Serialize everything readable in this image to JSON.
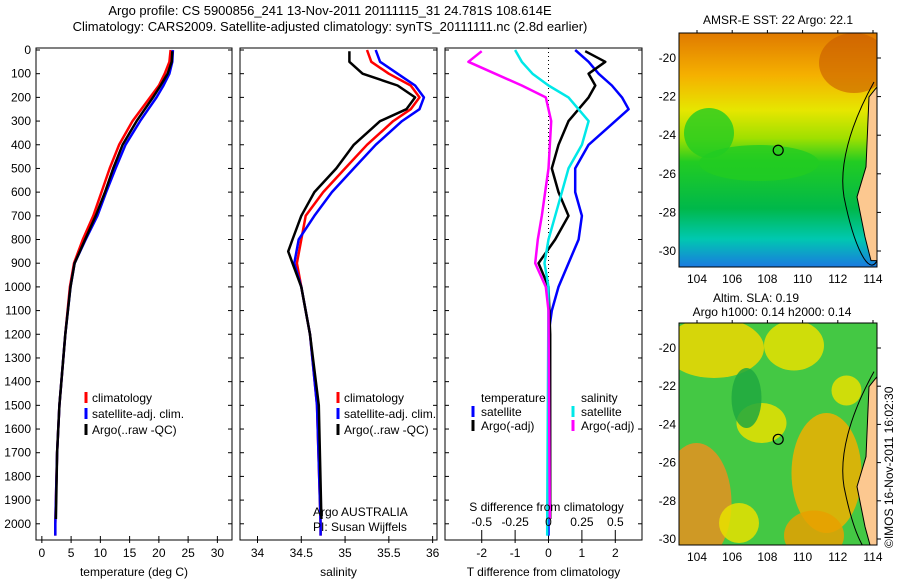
{
  "title_line1": "Argo profile: CS 5900856_241 13-Nov-2011 20111115_31 24.781S 108.614E",
  "title_line2": "Climatology: CARS2009. Satellite-adjusted climatology: synTS_20111111.nc (2.8d earlier)",
  "colors": {
    "climatology": "#ff0000",
    "satellite": "#0000ff",
    "argo": "#000000",
    "sal_satellite": "#00e8e8",
    "sal_argo": "#ff00ff"
  },
  "chart_data": [
    {
      "type": "line",
      "name": "temperature",
      "xlabel": "temperature (deg C)",
      "xlim": [
        -1,
        32.5
      ],
      "ylim": [
        0,
        2060
      ],
      "y_reversed": true,
      "xticks": [
        0,
        5,
        10,
        15,
        20,
        25,
        30
      ],
      "yticks": [
        0,
        100,
        200,
        300,
        400,
        500,
        600,
        700,
        800,
        900,
        1000,
        1100,
        1200,
        1300,
        1400,
        1500,
        1600,
        1700,
        1800,
        1900,
        2000
      ],
      "legend": [
        "climatology",
        "satellite-adj. clim.",
        "Argo(..raw -QC)"
      ],
      "series": [
        {
          "name": "climatology",
          "color": "#ff0000",
          "depth": [
            0,
            50,
            100,
            150,
            200,
            250,
            300,
            400,
            500,
            600,
            700,
            800,
            900,
            1000,
            1200,
            1500,
            1700,
            2000,
            2050
          ],
          "values": [
            22,
            21.8,
            21,
            20,
            18.5,
            17,
            15.5,
            13.2,
            11.6,
            10.2,
            8.8,
            7.0,
            5.5,
            4.8,
            4.0,
            3.0,
            2.6,
            2.3,
            2.3
          ]
        },
        {
          "name": "satellite-adj. clim.",
          "color": "#0000ff",
          "depth": [
            0,
            50,
            100,
            150,
            200,
            250,
            300,
            400,
            500,
            600,
            700,
            800,
            900,
            1000,
            1200,
            1500,
            1700,
            2000,
            2050
          ],
          "values": [
            22.4,
            22.3,
            21.8,
            20.8,
            19.6,
            18.2,
            16.8,
            14.3,
            12.6,
            11.0,
            9.5,
            7.5,
            5.6,
            4.9,
            4.0,
            3.0,
            2.6,
            2.3,
            2.3
          ]
        },
        {
          "name": "Argo(..raw -QC)",
          "color": "#000000",
          "depth": [
            5,
            50,
            100,
            150,
            200,
            250,
            300,
            400,
            500,
            600,
            700,
            800,
            900,
            1000,
            1200,
            1500,
            1700,
            1980
          ],
          "values": [
            22.3,
            22.2,
            21.5,
            20.3,
            19.0,
            17.6,
            16.2,
            13.8,
            12.2,
            10.8,
            9.2,
            7.4,
            5.6,
            4.9,
            4.0,
            3.0,
            2.6,
            2.4
          ]
        }
      ]
    },
    {
      "type": "line",
      "name": "salinity",
      "xlabel": "salinity",
      "xlim": [
        33.8,
        36.05
      ],
      "ylim": [
        0,
        2060
      ],
      "y_reversed": true,
      "xticks": [
        34,
        34.5,
        35,
        35.5,
        36
      ],
      "legend": [
        "climatology",
        "satellite-adj. clim.",
        "Argo(..raw -QC)"
      ],
      "annotation": [
        "Argo AUSTRALIA",
        "PI: Susan Wijffels"
      ],
      "series": [
        {
          "name": "climatology",
          "color": "#ff0000",
          "depth": [
            0,
            50,
            100,
            150,
            200,
            250,
            300,
            400,
            500,
            600,
            700,
            800,
            900,
            1000,
            1200,
            1500,
            2000,
            2050
          ],
          "values": [
            35.25,
            35.3,
            35.5,
            35.75,
            35.85,
            35.75,
            35.55,
            35.25,
            35.0,
            34.75,
            34.55,
            34.5,
            34.45,
            34.5,
            34.6,
            34.68,
            34.72,
            34.72
          ]
        },
        {
          "name": "satellite-adj. clim.",
          "color": "#0000ff",
          "depth": [
            0,
            50,
            100,
            150,
            200,
            250,
            300,
            400,
            500,
            600,
            700,
            800,
            900,
            1000,
            1200,
            1500,
            2000,
            2050
          ],
          "values": [
            35.35,
            35.4,
            35.6,
            35.8,
            35.9,
            35.85,
            35.65,
            35.35,
            35.1,
            34.85,
            34.65,
            34.47,
            34.42,
            34.5,
            34.6,
            34.68,
            34.72,
            34.72
          ]
        },
        {
          "name": "Argo(..raw -QC)",
          "color": "#000000",
          "depth": [
            5,
            50,
            100,
            150,
            200,
            250,
            300,
            400,
            500,
            600,
            700,
            800,
            850,
            900,
            1000,
            1200,
            1500,
            1980
          ],
          "values": [
            35.05,
            35.05,
            35.2,
            35.6,
            35.8,
            35.7,
            35.4,
            35.1,
            34.9,
            34.65,
            34.5,
            34.4,
            34.35,
            34.4,
            34.5,
            34.6,
            34.7,
            34.73
          ]
        }
      ]
    },
    {
      "type": "line",
      "name": "difference",
      "xlabel": "T difference from climatology",
      "x2label": "S difference from climatology",
      "xlim": [
        -3.1,
        2.8
      ],
      "ylim": [
        0,
        2060
      ],
      "y_reversed": true,
      "xticks": [
        -2,
        -1,
        0,
        1,
        2
      ],
      "x2ticks": [
        -0.5,
        -0.25,
        0,
        0.25,
        0.5
      ],
      "x2ticklabels": [
        "-0.5",
        "-0.25",
        "0",
        "0.25",
        "0.5"
      ],
      "legend_t_title": "temperature",
      "legend_s_title": "salinity",
      "legend": [
        "satellite",
        "Argo(-adj)",
        "satellite",
        "Argo(-adj)"
      ],
      "series": [
        {
          "name": "T satellite",
          "color": "#0000ff",
          "scale": 1,
          "depth": [
            0,
            50,
            100,
            150,
            200,
            250,
            300,
            400,
            500,
            600,
            700,
            800,
            900,
            1000,
            1100,
            1200,
            2000,
            2050
          ],
          "values": [
            0.8,
            1.2,
            1.5,
            1.9,
            2.2,
            2.4,
            2.0,
            1.2,
            0.8,
            0.8,
            1.0,
            0.9,
            0.6,
            0.3,
            0.1,
            0,
            0,
            0
          ]
        },
        {
          "name": "T Argo(-adj)",
          "color": "#000000",
          "scale": 1,
          "depth": [
            5,
            50,
            100,
            150,
            200,
            300,
            400,
            500,
            600,
            700,
            800,
            900,
            1000,
            1200,
            1980
          ],
          "values": [
            1.1,
            1.7,
            1.2,
            1.4,
            1.2,
            0.6,
            0.3,
            0.1,
            0.3,
            0.6,
            0.2,
            -0.3,
            0,
            0.05,
            0.05
          ]
        },
        {
          "name": "S satellite",
          "color": "#00e8e8",
          "scale": 4,
          "depth": [
            0,
            50,
            100,
            150,
            200,
            300,
            400,
            500,
            600,
            700,
            800,
            900,
            1000,
            2000,
            2050
          ],
          "values": [
            -0.25,
            -0.2,
            -0.12,
            0.0,
            0.15,
            0.3,
            0.25,
            0.15,
            0.1,
            0.05,
            0.0,
            -0.03,
            0,
            -0.01,
            -0.01
          ]
        },
        {
          "name": "S Argo(-adj)",
          "color": "#ff00ff",
          "scale": 4,
          "depth": [
            5,
            50,
            100,
            150,
            200,
            300,
            500,
            700,
            800,
            900,
            1000,
            1100,
            1980
          ],
          "values": [
            -0.5,
            -0.6,
            -0.4,
            -0.2,
            -0.02,
            0.02,
            0,
            -0.05,
            -0.08,
            -0.1,
            -0.02,
            0,
            0.01
          ]
        }
      ]
    }
  ],
  "maps": [
    {
      "title": "AMSR-E SST: 22 Argo: 22.1",
      "lat_ticks": [
        "-20",
        "-22",
        "-24",
        "-26",
        "-28",
        "-30"
      ],
      "lon_ticks": [
        "104",
        "106",
        "108",
        "110",
        "112",
        "114"
      ],
      "marker": {
        "lon": 108.614,
        "lat": -24.781
      }
    },
    {
      "title_line1": "Altim. SLA: 0.19",
      "title_line2": "Argo h1000: 0.14 h2000: 0.14",
      "lat_ticks": [
        "-20",
        "-22",
        "-24",
        "-26",
        "-28",
        "-30"
      ],
      "lon_ticks": [
        "104",
        "106",
        "108",
        "110",
        "112",
        "114"
      ],
      "marker": {
        "lon": 108.614,
        "lat": -24.781
      }
    }
  ],
  "credit": "©IMOS 16-Nov-2011 16:02:30"
}
